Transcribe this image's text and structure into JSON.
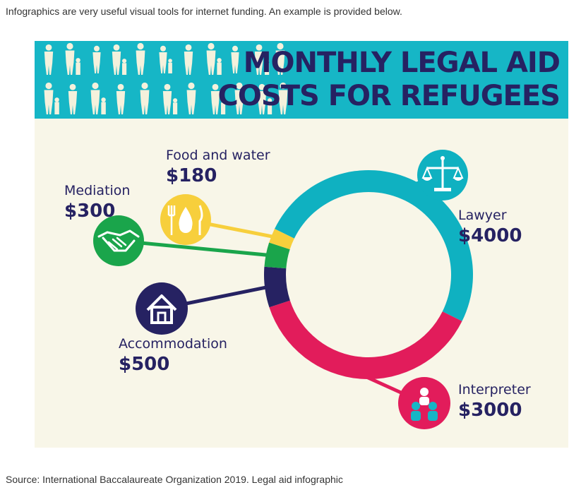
{
  "intro_text": "Infographics are very useful visual tools for internet funding. An example is provided below.",
  "title_line1": "MONTHLY LEGAL AID",
  "title_line2": "COSTS FOR REFUGEES",
  "source_text": "Source: International Baccalaureate Organization 2019. Legal aid infographic",
  "colors": {
    "banner": "#16b6c6",
    "background": "#f8f6e8",
    "title": "#262262"
  },
  "chart_data": {
    "type": "pie",
    "variant": "donut",
    "title": "MONTHLY LEGAL AID COSTS FOR REFUGEES",
    "unit": "$",
    "slices": [
      {
        "label": "Lawyer",
        "value": 4000,
        "value_label": "$4000",
        "color": "#0fb1c1",
        "icon": "scales-of-justice-icon"
      },
      {
        "label": "Interpreter",
        "value": 3000,
        "value_label": "$3000",
        "color": "#e21c5b",
        "icon": "people-icon"
      },
      {
        "label": "Accommodation",
        "value": 500,
        "value_label": "$500",
        "color": "#262262",
        "icon": "house-icon"
      },
      {
        "label": "Mediation",
        "value": 300,
        "value_label": "$300",
        "color": "#1aa54b",
        "icon": "handshake-icon"
      },
      {
        "label": "Food and water",
        "value": 180,
        "value_label": "$180",
        "color": "#f7cf3c",
        "icon": "food-water-icon"
      }
    ]
  }
}
